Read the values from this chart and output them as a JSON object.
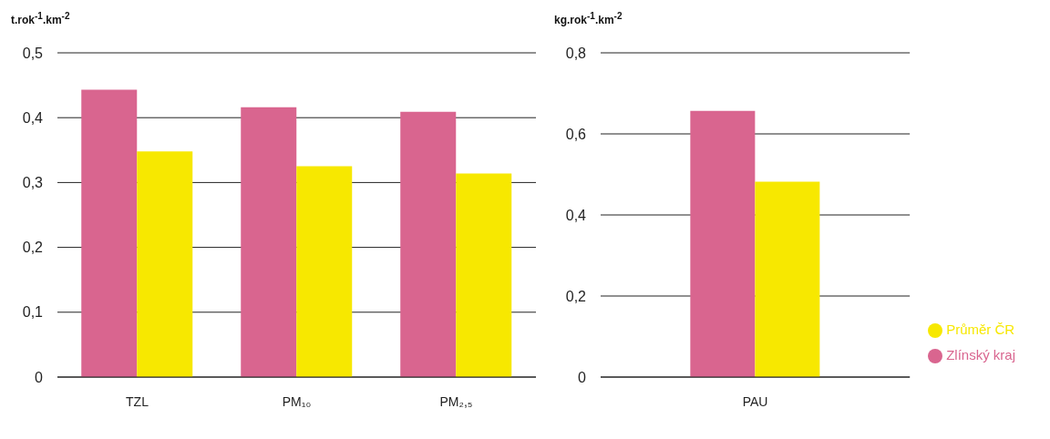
{
  "chart_data": [
    {
      "type": "bar",
      "ylabel": "t.rok$^{-1}$.km$^{-2}$",
      "categories": [
        "TZL",
        "PM₁₀",
        "PM₂,₅"
      ],
      "series": [
        {
          "color": "#d9658f",
          "values": [
            0.443,
            0.416,
            0.409
          ]
        },
        {
          "color": "#f7e800",
          "values": [
            0.348,
            0.325,
            0.314
          ]
        }
      ],
      "ylim": [
        0,
        0.5
      ],
      "yticks": [
        {
          "value": 0,
          "label": "0"
        },
        {
          "value": 0.1,
          "label": "0,1"
        },
        {
          "value": 0.2,
          "label": "0,2"
        },
        {
          "value": 0.3,
          "label": "0,3"
        },
        {
          "value": 0.4,
          "label": "0,4"
        },
        {
          "value": 0.5,
          "label": "0,5"
        }
      ],
      "grid": "y",
      "legend": false
    },
    {
      "type": "bar",
      "ylabel": "kg.rok$^{-1}$.km$^{-2}$",
      "categories": [
        "PAU"
      ],
      "series": [
        {
          "name": "Zlínský kraj",
          "color": "#d9658f",
          "values": [
            0.657
          ]
        },
        {
          "name": "Průměr ČR",
          "color": "#f7e800",
          "values": [
            0.482
          ]
        }
      ],
      "ylim": [
        0,
        0.8
      ],
      "yticks": [
        {
          "value": 0,
          "label": "0"
        },
        {
          "value": 0.2,
          "label": "0,2"
        },
        {
          "value": 0.4,
          "label": "0,4"
        },
        {
          "value": 0.6,
          "label": "0,6"
        },
        {
          "value": 0.8,
          "label": "0,8"
        }
      ],
      "grid": "y",
      "legend": "right"
    }
  ]
}
